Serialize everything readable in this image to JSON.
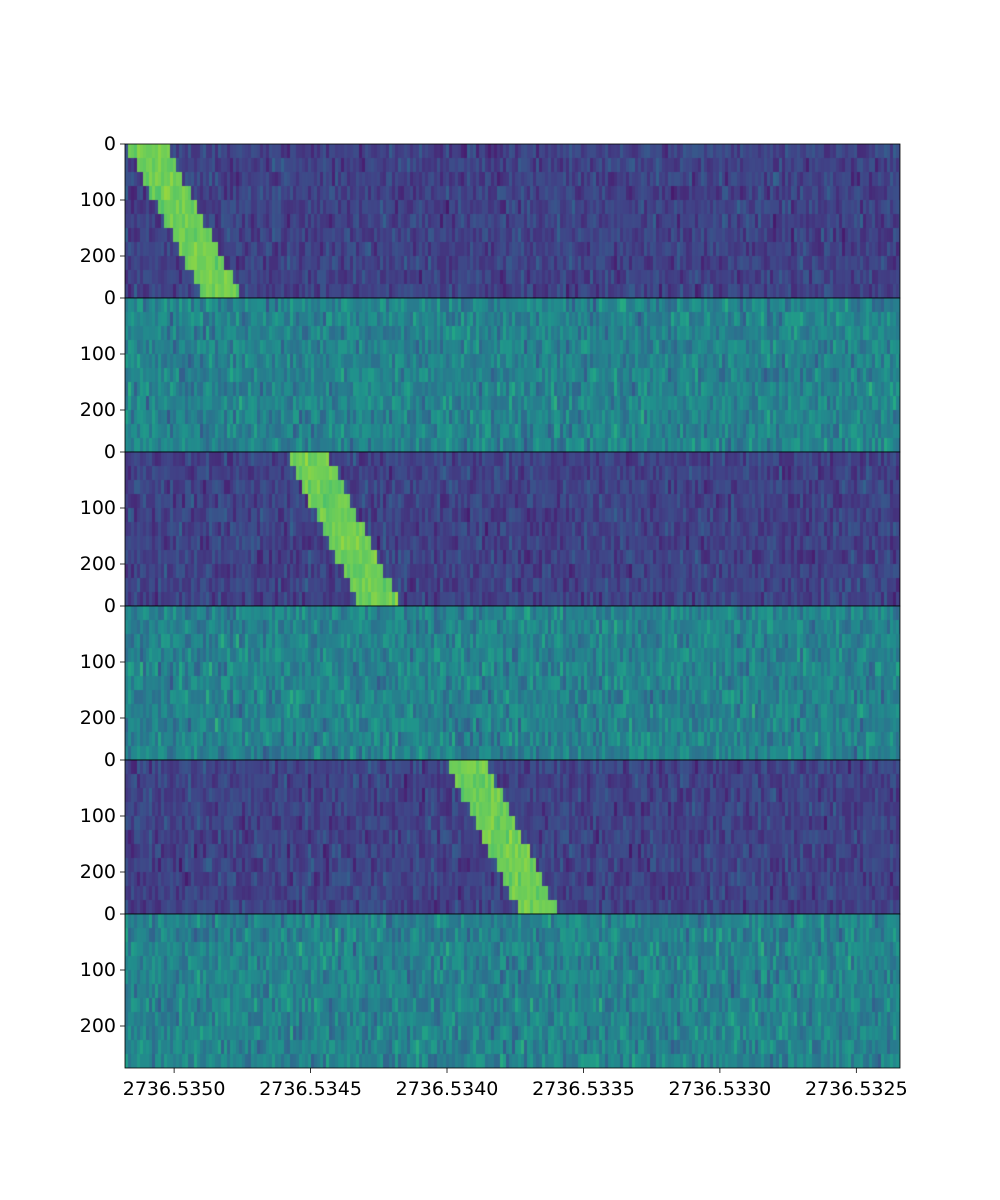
{
  "chart_data": {
    "type": "heatmap",
    "layout": "six vertically stacked waterfall panels sharing the x axis",
    "colormap": "viridis",
    "xlabel": "",
    "ylabel": "",
    "xlim": [
      2736.53518,
      2736.53234
    ],
    "x_ticks": [
      {
        "value": 2736.535,
        "label": "2736.5350"
      },
      {
        "value": 2736.5345,
        "label": "2736.5345"
      },
      {
        "value": 2736.534,
        "label": "2736.5340"
      },
      {
        "value": 2736.5335,
        "label": "2736.5335"
      },
      {
        "value": 2736.533,
        "label": "2736.5330"
      },
      {
        "value": 2736.5325,
        "label": "2736.5325"
      }
    ],
    "ylim": [
      0,
      275
    ],
    "y_inverted": true,
    "y_ticks": [
      {
        "value": 0,
        "label": "0"
      },
      {
        "value": 100,
        "label": "100"
      },
      {
        "value": 200,
        "label": "200"
      }
    ],
    "grid": false,
    "panels": [
      {
        "background": "dark",
        "signal": {
          "x_start_left": 2736.53518,
          "x_start_right": 2736.53503,
          "x_end_left": 2736.53489,
          "x_end_right": 2736.53475
        }
      },
      {
        "background": "bright",
        "signal": null
      },
      {
        "background": "dark",
        "signal": {
          "x_start_left": 2736.53459,
          "x_start_right": 2736.53444,
          "x_end_left": 2736.53432,
          "x_end_right": 2736.53417
        }
      },
      {
        "background": "bright",
        "signal": null
      },
      {
        "background": "dark",
        "signal": {
          "x_start_left": 2736.53401,
          "x_start_right": 2736.53386,
          "x_end_left": 2736.53373,
          "x_end_right": 2736.53359
        }
      },
      {
        "background": "bright",
        "signal": null
      }
    ]
  }
}
